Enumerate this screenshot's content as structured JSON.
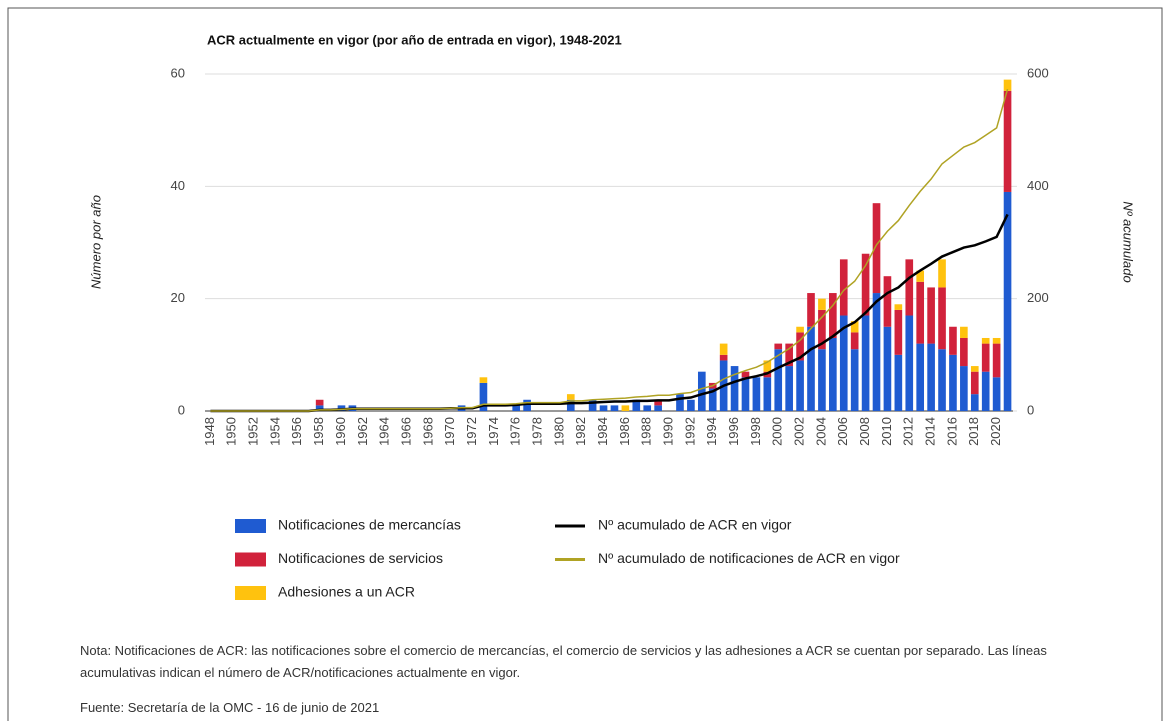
{
  "chart_data": {
    "type": "bar",
    "title": "ACR actualmente en vigor (por año de entrada en vigor), 1948-2021",
    "y_label": "Número por año",
    "y2_label": "Nº acumulado",
    "categories": [
      "1948",
      null,
      "1950",
      null,
      "1952",
      null,
      "1954",
      null,
      "1956",
      null,
      "1958",
      null,
      "1960",
      null,
      "1962",
      null,
      "1964",
      null,
      "1966",
      null,
      "1968",
      null,
      "1970",
      null,
      "1972",
      null,
      "1974",
      null,
      "1976",
      null,
      "1978",
      null,
      "1980",
      null,
      "1982",
      null,
      "1984",
      null,
      "1986",
      null,
      "1988",
      null,
      "1990",
      null,
      "1992",
      null,
      "1994",
      null,
      "1996",
      null,
      "1998",
      null,
      "2000",
      null,
      "2002",
      null,
      "2004",
      null,
      "2006",
      null,
      "2008",
      null,
      "2010",
      null,
      "2012",
      null,
      "2014",
      null,
      "2016",
      null,
      "2018",
      null,
      "2020",
      null
    ],
    "series": [
      {
        "name": "Notificaciones de mercancías",
        "type": "bar",
        "color": "#1f5bd1",
        "values": [
          0,
          0,
          0,
          0,
          0,
          0,
          0,
          0,
          0,
          0,
          1,
          0,
          1,
          1,
          0,
          0,
          0,
          0,
          0,
          0,
          0,
          0,
          0,
          1,
          0,
          5,
          0,
          0,
          1,
          2,
          0,
          0,
          0,
          2,
          0,
          2,
          1,
          1,
          0,
          2,
          1,
          1,
          0,
          3,
          2,
          7,
          4,
          9,
          8,
          6,
          6,
          6,
          11,
          8,
          9,
          15,
          11,
          13,
          17,
          11,
          17,
          21,
          15,
          10,
          17,
          12,
          12,
          11,
          10,
          8,
          3,
          7,
          6,
          39
        ]
      },
      {
        "name": "Notificaciones de servicios",
        "type": "bar",
        "color": "#d1223b",
        "values": [
          0,
          0,
          0,
          0,
          0,
          0,
          0,
          0,
          0,
          0,
          1,
          0,
          0,
          0,
          0,
          0,
          0,
          0,
          0,
          0,
          0,
          0,
          0,
          0,
          0,
          0,
          0,
          0,
          0,
          0,
          0,
          0,
          0,
          0,
          0,
          0,
          0,
          0,
          0,
          0,
          0,
          1,
          0,
          0,
          0,
          0,
          1,
          1,
          0,
          1,
          0,
          1,
          1,
          4,
          5,
          6,
          7,
          8,
          10,
          3,
          11,
          16,
          9,
          8,
          10,
          11,
          10,
          11,
          5,
          5,
          4,
          5,
          6,
          18
        ]
      },
      {
        "name": "Adhesiones a un ACR",
        "type": "bar",
        "color": "#ffc20e",
        "values": [
          0,
          0,
          0,
          0,
          0,
          0,
          0,
          0,
          0,
          0,
          0,
          0,
          0,
          0,
          0,
          0,
          0,
          0,
          0,
          0,
          0,
          0,
          0,
          0,
          0,
          1,
          0,
          0,
          0,
          0,
          0,
          0,
          0,
          1,
          0,
          0,
          0,
          0,
          1,
          0,
          0,
          0,
          0,
          0,
          0,
          0,
          0,
          2,
          0,
          0,
          0,
          2,
          0,
          0,
          1,
          0,
          2,
          0,
          0,
          2,
          0,
          0,
          0,
          1,
          0,
          2,
          0,
          5,
          0,
          2,
          1,
          1,
          1,
          2
        ]
      },
      {
        "name": "Nº acumulado de ACR en vigor",
        "type": "line",
        "axis": "y2",
        "color": "#000000",
        "values": [
          0,
          0,
          0,
          0,
          0,
          0,
          0,
          0,
          0,
          0,
          2,
          2,
          3,
          4,
          4,
          4,
          4,
          4,
          4,
          4,
          4,
          4,
          5,
          5,
          5,
          10,
          10,
          10,
          11,
          13,
          13,
          13,
          13,
          14,
          14,
          15,
          16,
          17,
          17,
          18,
          18,
          19,
          19,
          22,
          24,
          30,
          35,
          45,
          52,
          58,
          62,
          67,
          77,
          86,
          95,
          110,
          120,
          133,
          148,
          158,
          175,
          195,
          210,
          220,
          237,
          250,
          262,
          275,
          283,
          291,
          295,
          302,
          310,
          350
        ]
      },
      {
        "name": "Nº acumulado de notificaciones de ACR en vigor",
        "type": "line",
        "axis": "y2",
        "color": "#b0a324",
        "values": [
          0,
          0,
          0,
          0,
          0,
          0,
          0,
          0,
          0,
          0,
          2,
          2,
          3,
          4,
          4,
          4,
          4,
          4,
          4,
          4,
          4,
          4,
          5,
          6,
          6,
          12,
          12,
          12,
          13,
          15,
          15,
          15,
          15,
          18,
          18,
          20,
          21,
          22,
          23,
          25,
          26,
          28,
          28,
          31,
          33,
          40,
          45,
          57,
          65,
          72,
          78,
          87,
          99,
          111,
          126,
          147,
          167,
          188,
          215,
          231,
          259,
          296,
          320,
          339,
          366,
          391,
          413,
          440,
          455,
          470,
          478,
          491,
          504,
          573
        ]
      }
    ],
    "ylim": [
      0,
      60
    ],
    "yticks": [
      0,
      20,
      40,
      60
    ],
    "y2lim": [
      0,
      600
    ],
    "y2ticks": [
      0,
      200,
      400,
      600
    ],
    "grid": true,
    "legend": "bottom"
  },
  "note": "Nota: Notificaciones de ACR: las notificaciones sobre el comercio de mercancías, el comercio de servicios y las adhesiones a ACR se cuentan por separado. Las líneas acumulativas indican el número de ACR/notificaciones actualmente en vigor.",
  "source": "Fuente: Secretaría de la OMC  -  16 de junio de 2021"
}
